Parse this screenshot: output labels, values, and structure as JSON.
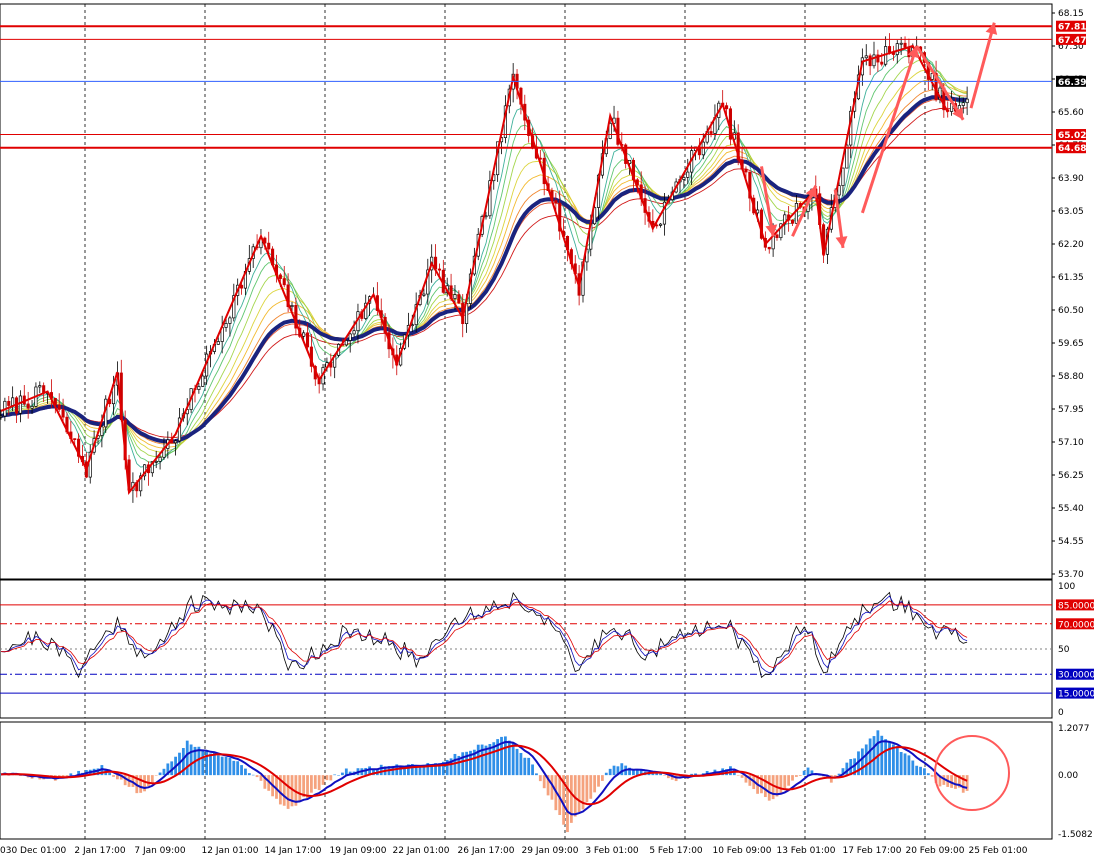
{
  "chart_data": [
    {
      "type": "candlestick",
      "panel": "price",
      "ylim": [
        53.7,
        68.15
      ],
      "y_ticks": [
        "68.15",
        "67.30",
        "66.45",
        "65.60",
        "64.75",
        "63.90",
        "63.05",
        "62.20",
        "61.35",
        "60.50",
        "59.65",
        "58.80",
        "57.95",
        "57.10",
        "56.25",
        "55.40",
        "54.55",
        "53.70"
      ],
      "x_labels": [
        "0",
        "30 Dec 01:00",
        "2 Jan 17:00",
        "7 Jan 09:00",
        "12 Jan 01:00",
        "14 Jan 17:00",
        "19 Jan 09:00",
        "22 Jan 01:00",
        "26 Jan 17:00",
        "29 Jan 09:00",
        "3 Feb 01:00",
        "5 Feb 17:00",
        "10 Feb 09:00",
        "13 Feb 01:00",
        "17 Feb 17:00",
        "20 Feb 09:00",
        "25 Feb 01:00"
      ],
      "key_points": [
        {
          "bar": 0,
          "price": 57.9
        },
        {
          "bar": 12,
          "price": 58.4
        },
        {
          "bar": 22,
          "price": 56.4
        },
        {
          "bar": 30,
          "price": 58.9
        },
        {
          "bar": 33,
          "price": 55.8
        },
        {
          "bar": 45,
          "price": 57.3
        },
        {
          "bar": 67,
          "price": 62.4
        },
        {
          "bar": 82,
          "price": 58.7
        },
        {
          "bar": 96,
          "price": 60.9
        },
        {
          "bar": 102,
          "price": 59.1
        },
        {
          "bar": 111,
          "price": 61.7
        },
        {
          "bar": 119,
          "price": 60.3
        },
        {
          "bar": 132,
          "price": 66.5
        },
        {
          "bar": 149,
          "price": 61.1
        },
        {
          "bar": 157,
          "price": 65.5
        },
        {
          "bar": 168,
          "price": 62.6
        },
        {
          "bar": 186,
          "price": 65.8
        },
        {
          "bar": 197,
          "price": 62.2
        },
        {
          "bar": 210,
          "price": 63.6
        },
        {
          "bar": 212,
          "price": 61.9
        },
        {
          "bar": 222,
          "price": 66.9
        },
        {
          "bar": 235,
          "price": 67.3
        },
        {
          "bar": 244,
          "price": 65.6
        }
      ],
      "horizontal_lines": [
        {
          "label": "67.81",
          "value": 67.81,
          "color": "#e00000",
          "thick": true
        },
        {
          "label": "67.47",
          "value": 67.47,
          "color": "#e00000",
          "thick": false
        },
        {
          "label": "66.39",
          "value": 66.39,
          "color": "#3060ff",
          "thick": false,
          "current": true
        },
        {
          "label": "65.02",
          "value": 65.02,
          "color": "#e00000",
          "thick": false
        },
        {
          "label": "64.68",
          "value": 64.68,
          "color": "#e00000",
          "thick": true
        }
      ],
      "colors": {
        "bull": "#000000",
        "bear": "#cc0000",
        "ma_thick": "#1a237e",
        "zigzag": "#e00000",
        "arrows": "#ff5a5a"
      }
    },
    {
      "type": "line",
      "panel": "oscillator",
      "ylim": [
        0,
        100
      ],
      "y_ticks": [
        "100",
        "50",
        "0"
      ],
      "levels": [
        {
          "label": "85.0000",
          "value": 85,
          "color": "#e00000"
        },
        {
          "label": "70.0000",
          "value": 70,
          "color": "#e00000"
        },
        {
          "label": "30.0000",
          "value": 30,
          "color": "#0000c0"
        },
        {
          "label": "15.0000",
          "value": 15,
          "color": "#0000c0"
        }
      ],
      "key_points": [
        {
          "bar": 0,
          "value": 52
        },
        {
          "bar": 10,
          "value": 60
        },
        {
          "bar": 20,
          "value": 35
        },
        {
          "bar": 30,
          "value": 72
        },
        {
          "bar": 38,
          "value": 40
        },
        {
          "bar": 48,
          "value": 85
        },
        {
          "bar": 66,
          "value": 85
        },
        {
          "bar": 75,
          "value": 35
        },
        {
          "bar": 88,
          "value": 62
        },
        {
          "bar": 100,
          "value": 55
        },
        {
          "bar": 108,
          "value": 40
        },
        {
          "bar": 115,
          "value": 70
        },
        {
          "bar": 132,
          "value": 90
        },
        {
          "bar": 141,
          "value": 75
        },
        {
          "bar": 148,
          "value": 32
        },
        {
          "bar": 158,
          "value": 72
        },
        {
          "bar": 166,
          "value": 45
        },
        {
          "bar": 186,
          "value": 75
        },
        {
          "bar": 196,
          "value": 30
        },
        {
          "bar": 208,
          "value": 70
        },
        {
          "bar": 212,
          "value": 35
        },
        {
          "bar": 224,
          "value": 86
        },
        {
          "bar": 232,
          "value": 88
        },
        {
          "bar": 240,
          "value": 65
        },
        {
          "bar": 248,
          "value": 58
        }
      ]
    },
    {
      "type": "bar",
      "panel": "macd",
      "ylim": [
        -1.5082,
        1.2077
      ],
      "y_ticks": [
        "1.2077",
        "0.00",
        "-1.5082"
      ],
      "key_points": [
        {
          "bar": 0,
          "value": 0.05
        },
        {
          "bar": 14,
          "value": -0.1
        },
        {
          "bar": 26,
          "value": 0.2
        },
        {
          "bar": 36,
          "value": -0.5
        },
        {
          "bar": 48,
          "value": 0.85
        },
        {
          "bar": 62,
          "value": 0.3
        },
        {
          "bar": 74,
          "value": -0.9
        },
        {
          "bar": 88,
          "value": 0.1
        },
        {
          "bar": 100,
          "value": 0.25
        },
        {
          "bar": 112,
          "value": 0.3
        },
        {
          "bar": 130,
          "value": 1.0
        },
        {
          "bar": 136,
          "value": 0.4
        },
        {
          "bar": 146,
          "value": -1.4
        },
        {
          "bar": 158,
          "value": 0.3
        },
        {
          "bar": 174,
          "value": -0.1
        },
        {
          "bar": 188,
          "value": 0.2
        },
        {
          "bar": 198,
          "value": -0.7
        },
        {
          "bar": 208,
          "value": 0.2
        },
        {
          "bar": 214,
          "value": -0.15
        },
        {
          "bar": 226,
          "value": 1.1
        },
        {
          "bar": 236,
          "value": 0.3
        },
        {
          "bar": 242,
          "value": -0.25
        },
        {
          "bar": 248,
          "value": -0.4
        }
      ],
      "colors": {
        "pos": "#2f8fe8",
        "neg": "#f5a27e",
        "macd": "#1010c0",
        "signal": "#e00000"
      },
      "annotation": "circle"
    }
  ]
}
